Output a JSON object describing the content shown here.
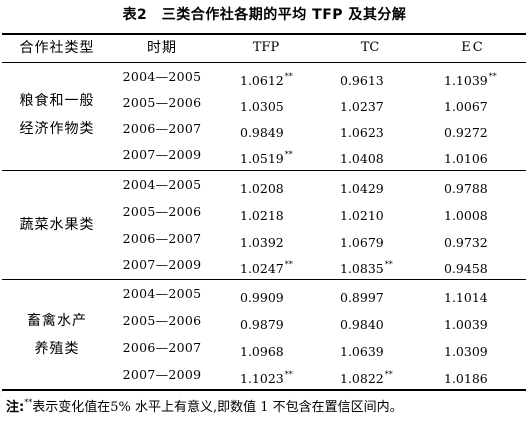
{
  "title": "表2　三类合作社各期的平均 TFP 及其分解",
  "headers": {
    "type": "合作社类型",
    "period": "时期",
    "tfp": "TFP",
    "tc": "TC",
    "ec": "EC"
  },
  "groups": [
    {
      "label_line1": "粮食和一般",
      "label_line2": "经济作物类",
      "rows": [
        {
          "period": "2004—2005",
          "tfp": "1.0612",
          "tfp_sig": "**",
          "tc": "0.9613",
          "tc_sig": "",
          "ec": "1.1039",
          "ec_sig": "**"
        },
        {
          "period": "2005—2006",
          "tfp": "1.0305",
          "tfp_sig": "",
          "tc": "1.0237",
          "tc_sig": "",
          "ec": "1.0067",
          "ec_sig": ""
        },
        {
          "period": "2006—2007",
          "tfp": "0.9849",
          "tfp_sig": "",
          "tc": "1.0623",
          "tc_sig": "",
          "ec": "0.9272",
          "ec_sig": ""
        },
        {
          "period": "2007—2009",
          "tfp": "1.0519",
          "tfp_sig": "**",
          "tc": "1.0408",
          "tc_sig": "",
          "ec": "1.0106",
          "ec_sig": ""
        }
      ]
    },
    {
      "label_line1": "蔬菜水果类",
      "label_line2": "",
      "rows": [
        {
          "period": "2004—2005",
          "tfp": "1.0208",
          "tfp_sig": "",
          "tc": "1.0429",
          "tc_sig": "",
          "ec": "0.9788",
          "ec_sig": ""
        },
        {
          "period": "2005—2006",
          "tfp": "1.0218",
          "tfp_sig": "",
          "tc": "1.0210",
          "tc_sig": "",
          "ec": "1.0008",
          "ec_sig": ""
        },
        {
          "period": "2006—2007",
          "tfp": "1.0392",
          "tfp_sig": "",
          "tc": "1.0679",
          "tc_sig": "",
          "ec": "0.9732",
          "ec_sig": ""
        },
        {
          "period": "2007—2009",
          "tfp": "1.0247",
          "tfp_sig": "**",
          "tc": "1.0835",
          "tc_sig": "**",
          "ec": "0.9458",
          "ec_sig": ""
        }
      ]
    },
    {
      "label_line1": "畜禽水产",
      "label_line2": "养殖类",
      "rows": [
        {
          "period": "2004—2005",
          "tfp": "0.9909",
          "tfp_sig": "",
          "tc": "0.8997",
          "tc_sig": "",
          "ec": "1.1014",
          "ec_sig": ""
        },
        {
          "period": "2005—2006",
          "tfp": "0.9879",
          "tfp_sig": "",
          "tc": "0.9840",
          "tc_sig": "",
          "ec": "1.0039",
          "ec_sig": ""
        },
        {
          "period": "2006—2007",
          "tfp": "1.0968",
          "tfp_sig": "",
          "tc": "1.0639",
          "tc_sig": "",
          "ec": "1.0309",
          "ec_sig": ""
        },
        {
          "period": "2007—2009",
          "tfp": "1.1023",
          "tfp_sig": "**",
          "tc": "1.0822",
          "tc_sig": "**",
          "ec": "1.0186",
          "ec_sig": ""
        }
      ]
    }
  ],
  "note": {
    "prefix": "注:",
    "sig": "**",
    "text": "表示变化值在5% 水平上有意义,即数值 1 不包含在置信区间内。"
  }
}
